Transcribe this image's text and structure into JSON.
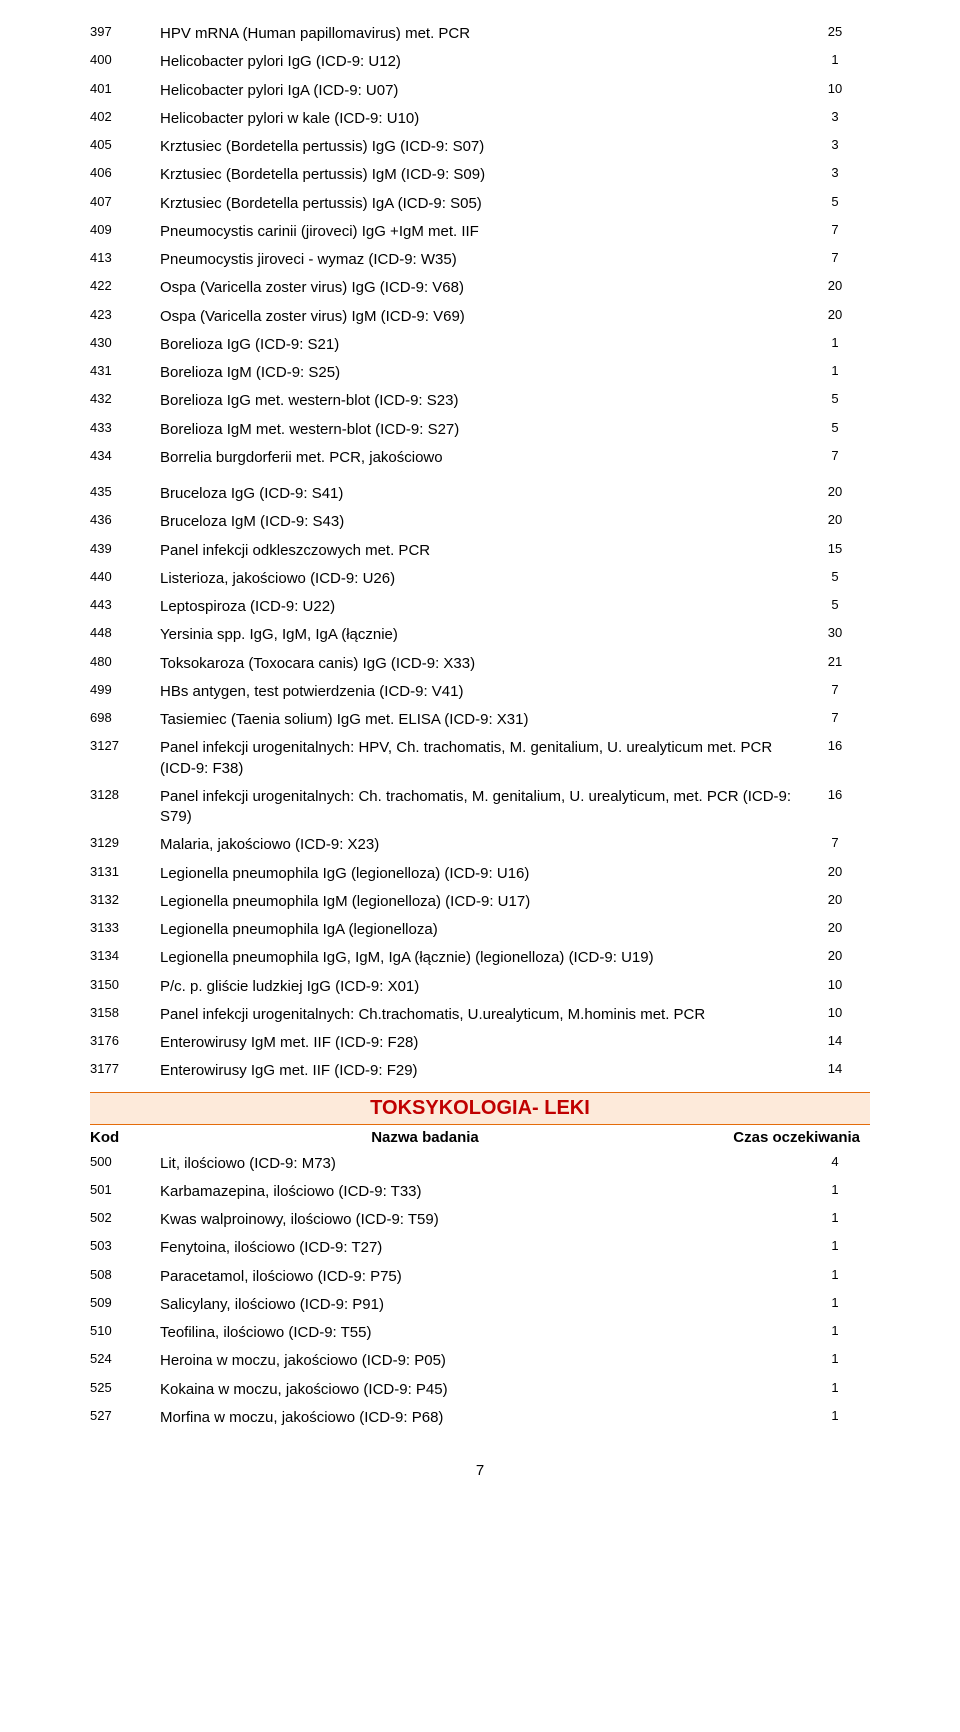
{
  "colors": {
    "section_bg": "#fdeada",
    "section_border": "#e46c0a",
    "section_text": "#c00000",
    "text": "#000000",
    "page_bg": "#ffffff"
  },
  "rowsTop": [
    {
      "code": "397",
      "name": "HPV mRNA (Human papillomavirus) met. PCR",
      "time": "25"
    },
    {
      "code": "400",
      "name": "Helicobacter pylori IgG (ICD-9: U12)",
      "time": "1"
    },
    {
      "code": "401",
      "name": "Helicobacter pylori IgA (ICD-9: U07)",
      "time": "10"
    },
    {
      "code": "402",
      "name": "Helicobacter pylori w kale (ICD-9: U10)",
      "time": "3"
    },
    {
      "code": "405",
      "name": "Krztusiec (Bordetella pertussis) IgG (ICD-9: S07)",
      "time": "3"
    },
    {
      "code": "406",
      "name": "Krztusiec (Bordetella pertussis) IgM (ICD-9: S09)",
      "time": "3"
    },
    {
      "code": "407",
      "name": "Krztusiec (Bordetella pertussis) IgA (ICD-9: S05)",
      "time": "5"
    },
    {
      "code": "409",
      "name": "Pneumocystis carinii (jiroveci) IgG +IgM met. IIF",
      "time": "7"
    },
    {
      "code": "413",
      "name": "Pneumocystis jiroveci - wymaz (ICD-9: W35)",
      "time": "7"
    },
    {
      "code": "422",
      "name": "Ospa (Varicella zoster virus) IgG (ICD-9: V68)",
      "time": "20"
    },
    {
      "code": "423",
      "name": "Ospa (Varicella zoster virus) IgM (ICD-9: V69)",
      "time": "20"
    },
    {
      "code": "430",
      "name": "Borelioza IgG (ICD-9: S21)",
      "time": "1"
    },
    {
      "code": "431",
      "name": "Borelioza IgM (ICD-9: S25)",
      "time": "1"
    },
    {
      "code": "432",
      "name": "Borelioza IgG met. western-blot (ICD-9: S23)",
      "time": "5"
    },
    {
      "code": "433",
      "name": "Borelioza IgM met. western-blot (ICD-9: S27)",
      "time": "5"
    },
    {
      "code": "434",
      "name": "Borrelia burgdorferii met. PCR, jakościowo",
      "time": "7"
    }
  ],
  "rowsMid": [
    {
      "code": "435",
      "name": "Bruceloza IgG (ICD-9: S41)",
      "time": "20"
    },
    {
      "code": "436",
      "name": "Bruceloza IgM (ICD-9: S43)",
      "time": "20"
    },
    {
      "code": "439",
      "name": "Panel infekcji odkleszczowych met. PCR",
      "time": "15"
    },
    {
      "code": "440",
      "name": "Listerioza, jakościowo (ICD-9: U26)",
      "time": "5"
    },
    {
      "code": "443",
      "name": "Leptospiroza (ICD-9: U22)",
      "time": "5"
    },
    {
      "code": "448",
      "name": "Yersinia spp. IgG, IgM, IgA (łącznie)",
      "time": "30"
    },
    {
      "code": "480",
      "name": "Toksokaroza (Toxocara canis) IgG (ICD-9: X33)",
      "time": "21"
    },
    {
      "code": "499",
      "name": "HBs antygen, test potwierdzenia (ICD-9: V41)",
      "time": "7"
    },
    {
      "code": "698",
      "name": "Tasiemiec (Taenia solium) IgG met. ELISA (ICD-9: X31)",
      "time": "7"
    },
    {
      "code": "3127",
      "name": "Panel infekcji urogenitalnych: HPV, Ch. trachomatis, M. genitalium, U. urealyticum met. PCR (ICD-9: F38)",
      "time": "16"
    },
    {
      "code": "3128",
      "name": "Panel infekcji urogenitalnych: Ch. trachomatis, M. genitalium, U. urealyticum, met. PCR (ICD-9: S79)",
      "time": "16"
    },
    {
      "code": "3129",
      "name": "Malaria, jakościowo (ICD-9: X23)",
      "time": "7"
    },
    {
      "code": "3131",
      "name": "Legionella pneumophila IgG (legionelloza) (ICD-9: U16)",
      "time": "20"
    },
    {
      "code": "3132",
      "name": "Legionella pneumophila IgM (legionelloza) (ICD-9: U17)",
      "time": "20"
    },
    {
      "code": "3133",
      "name": "Legionella pneumophila IgA (legionelloza)",
      "time": "20"
    },
    {
      "code": "3134",
      "name": "Legionella pneumophila IgG, IgM, IgA (łącznie) (legionelloza) (ICD-9: U19)",
      "time": "20"
    },
    {
      "code": "3150",
      "name": "P/c. p. gliście ludzkiej IgG (ICD-9: X01)",
      "time": "10"
    },
    {
      "code": "3158",
      "name": "Panel infekcji urogenitalnych: Ch.trachomatis, U.urealyticum, M.hominis met. PCR",
      "time": "10"
    },
    {
      "code": "3176",
      "name": "Enterowirusy IgM met. IIF (ICD-9: F28)",
      "time": "14"
    },
    {
      "code": "3177",
      "name": "Enterowirusy IgG met. IIF (ICD-9: F29)",
      "time": "14"
    }
  ],
  "section": {
    "title": "TOKSYKOLOGIA- LEKI",
    "headers": {
      "code": "Kod",
      "name": "Nazwa badania",
      "time": "Czas oczekiwania"
    }
  },
  "rowsSection": [
    {
      "code": "500",
      "name": "Lit, ilościowo (ICD-9: M73)",
      "time": "4"
    },
    {
      "code": "501",
      "name": "Karbamazepina, ilościowo (ICD-9: T33)",
      "time": "1"
    },
    {
      "code": "502",
      "name": "Kwas walproinowy, ilościowo (ICD-9: T59)",
      "time": "1"
    },
    {
      "code": "503",
      "name": "Fenytoina, ilościowo (ICD-9: T27)",
      "time": "1"
    },
    {
      "code": "508",
      "name": "Paracetamol, ilościowo (ICD-9: P75)",
      "time": "1"
    },
    {
      "code": "509",
      "name": "Salicylany, ilościowo (ICD-9: P91)",
      "time": "1"
    },
    {
      "code": "510",
      "name": "Teofilina, ilościowo (ICD-9: T55)",
      "time": "1"
    },
    {
      "code": "524",
      "name": "Heroina w moczu, jakościowo (ICD-9: P05)",
      "time": "1"
    },
    {
      "code": "525",
      "name": "Kokaina w moczu, jakościowo (ICD-9: P45)",
      "time": "1"
    },
    {
      "code": "527",
      "name": "Morfina w moczu, jakościowo (ICD-9: P68)",
      "time": "1"
    }
  ],
  "pageNumber": "7"
}
